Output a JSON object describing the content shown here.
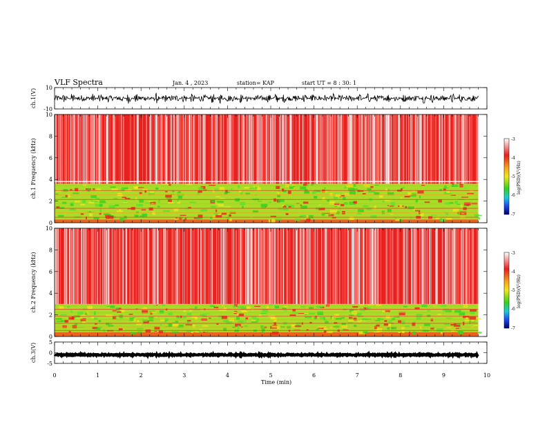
{
  "header": {
    "title": "VLF Spectra",
    "date": "Jan. 4 , 2023",
    "station": "station= KAP",
    "start": "start UT = 8 : 30: 1"
  },
  "colors": {
    "background_spectrum": "#e8201e",
    "band_green": "#32d21e",
    "band_yellow": "#f0e61e",
    "waveform": "#000000"
  },
  "chart_data": [
    {
      "id": "ch1-waveform",
      "type": "line",
      "ylabel": "ch.1(V)",
      "ylim": [
        -10,
        10
      ],
      "yticks": [
        "10",
        "-10"
      ],
      "xlim": [
        0,
        10
      ],
      "description_values": {
        "center": 0,
        "amplitude_range": [
          -5,
          5
        ]
      }
    },
    {
      "id": "ch1-spectrogram",
      "type": "heatmap",
      "ylabel": "ch.1 Frequency (kHz)",
      "ylim": [
        0,
        10
      ],
      "yticks": [
        "0",
        "2",
        "4",
        "6",
        "8",
        "10"
      ],
      "xlim": [
        0,
        10
      ],
      "data_end_min": 9.8,
      "bands": {
        "red_above_kHz": 3.6,
        "mixed_green_yellow_kHz": [
          0.3,
          3.6
        ],
        "line_kHz": 3.8
      },
      "colorbar": {
        "label": "log(PSD)(V²/Hz)",
        "range": [
          -7,
          -3
        ],
        "ticks": [
          "-3",
          "-4",
          "-5",
          "-6",
          "-7"
        ]
      }
    },
    {
      "id": "ch2-spectrogram",
      "type": "heatmap",
      "ylabel": "ch.2 Frequency (kHz)",
      "ylim": [
        0,
        10
      ],
      "yticks": [
        "0",
        "2",
        "4",
        "6",
        "8",
        "10"
      ],
      "xlim": [
        0,
        10
      ],
      "data_end_min": 9.8,
      "bands": {
        "red_above_kHz": 3.0,
        "mixed_green_yellow_kHz": [
          0.4,
          3.0
        ]
      },
      "colorbar": {
        "label": "log(PSD)(V²/Hz)",
        "range": [
          -7,
          -3
        ],
        "ticks": [
          "-3",
          "-4",
          "-5",
          "-6",
          "-7"
        ]
      }
    },
    {
      "id": "ch3-waveform",
      "type": "line",
      "ylabel": "ch.3(V)",
      "ylim": [
        -5,
        5
      ],
      "yticks": [
        "5",
        "0",
        "-5"
      ],
      "xlim": [
        0,
        10
      ],
      "description_values": {
        "center": -1,
        "amplitude_range": [
          -1.5,
          -0.5
        ]
      }
    }
  ],
  "xaxis": {
    "label": "Time (min)",
    "ticks": [
      "0",
      "1",
      "2",
      "3",
      "4",
      "5",
      "6",
      "7",
      "8",
      "9",
      "10"
    ]
  }
}
